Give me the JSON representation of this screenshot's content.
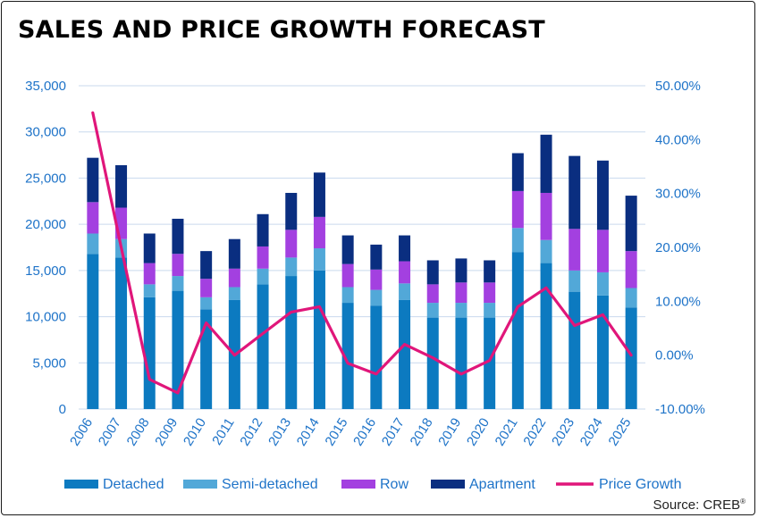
{
  "title": "SALES AND PRICE GROWTH FORECAST",
  "source": "Source: CREB",
  "source_mark": "®",
  "colors": {
    "Detached": "#0c7ac0",
    "Semi-detached": "#52a8d8",
    "Row": "#a340e0",
    "Apartment": "#0a2e80",
    "Price Growth": "#e0167a",
    "axis_text": "#1e73c8",
    "grid": "#c9d9ee"
  },
  "chart_data": {
    "type": "bar",
    "stacked": true,
    "categories": [
      "2006",
      "2007",
      "2008",
      "2009",
      "2010",
      "2011",
      "2012",
      "2013",
      "2014",
      "2015",
      "2016",
      "2017",
      "2018",
      "2019",
      "2020",
      "2021",
      "2022",
      "2023",
      "2024",
      "2025"
    ],
    "series": [
      {
        "name": "Detached",
        "values": [
          16800,
          16400,
          12100,
          12800,
          10800,
          11800,
          13500,
          14400,
          15000,
          11500,
          11200,
          11800,
          9900,
          9900,
          9900,
          17000,
          15800,
          12700,
          12300,
          11000
        ]
      },
      {
        "name": "Semi-detached",
        "values": [
          2200,
          2000,
          1400,
          1600,
          1300,
          1400,
          1700,
          2000,
          2400,
          1700,
          1700,
          1800,
          1600,
          1600,
          1600,
          2600,
          2500,
          2300,
          2500,
          2100
        ]
      },
      {
        "name": "Row",
        "values": [
          3400,
          3400,
          2300,
          2400,
          2000,
          2000,
          2400,
          3000,
          3400,
          2500,
          2200,
          2400,
          2000,
          2200,
          2200,
          4000,
          5100,
          4500,
          4600,
          4000
        ]
      },
      {
        "name": "Apartment",
        "values": [
          4800,
          4600,
          3200,
          3800,
          3000,
          3200,
          3500,
          4000,
          4800,
          3100,
          2700,
          2800,
          2600,
          2600,
          2400,
          4100,
          6300,
          7900,
          7500,
          6000
        ]
      }
    ],
    "line_series": {
      "name": "Price Growth",
      "axis": "right",
      "values": [
        45.0,
        20.0,
        -4.5,
        -7.0,
        6.0,
        0.0,
        4.0,
        8.0,
        9.0,
        -1.5,
        -3.5,
        2.0,
        -0.5,
        -3.5,
        -1.0,
        9.0,
        12.5,
        5.5,
        7.5,
        0.0
      ]
    },
    "y_left": {
      "min": 0,
      "max": 35000,
      "ticks": [
        "0",
        "5,000",
        "10,000",
        "15,000",
        "20,000",
        "25,000",
        "30,000",
        "35,000"
      ]
    },
    "y_right": {
      "min": -10,
      "max": 50,
      "ticks": [
        "-10.00%",
        "0.00%",
        "10.00%",
        "20.00%",
        "30.00%",
        "40.00%",
        "50.00%"
      ]
    },
    "legend": [
      "Detached",
      "Semi-detached",
      "Row",
      "Apartment",
      "Price Growth"
    ],
    "legend_position": "bottom",
    "grid": true
  }
}
